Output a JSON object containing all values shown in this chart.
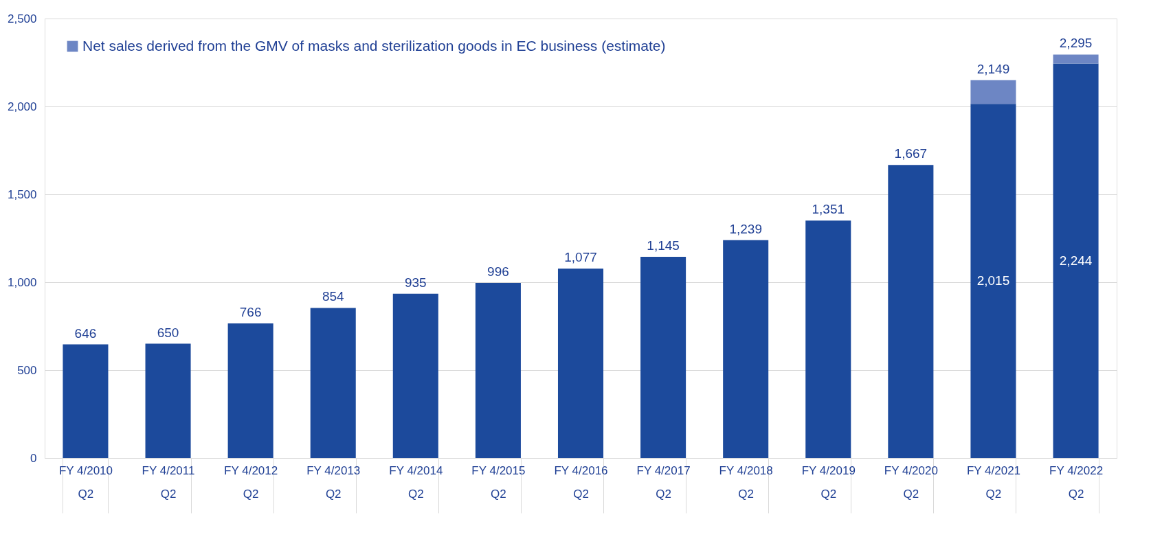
{
  "chart_data": {
    "type": "bar",
    "stacked": true,
    "categories": [
      "FY 4/2010\nQ2",
      "FY 4/2011\nQ2",
      "FY 4/2012\nQ2",
      "FY 4/2013\nQ2",
      "FY 4/2014\nQ2",
      "FY 4/2015\nQ2",
      "FY 4/2016\nQ2",
      "FY 4/2017\nQ2",
      "FY 4/2018\nQ2",
      "FY 4/2019\nQ2",
      "FY 4/2020\nQ2",
      "FY 4/2021\nQ2",
      "FY 4/2022\nQ2"
    ],
    "series": [
      {
        "color": "#1c4a9c",
        "values": [
          646,
          650,
          766,
          854,
          935,
          996,
          1077,
          1145,
          1239,
          1351,
          1667,
          2015,
          2244
        ],
        "value_labels": [
          null,
          null,
          null,
          null,
          null,
          null,
          null,
          null,
          null,
          null,
          null,
          "2,015",
          "2,244"
        ]
      },
      {
        "name": "Net sales derived from the GMV of masks and sterilization goods in EC business (estimate)",
        "color": "#6d86c4",
        "values": [
          null,
          null,
          null,
          null,
          null,
          null,
          null,
          null,
          null,
          null,
          null,
          134,
          51
        ]
      }
    ],
    "totals": [
      "646",
      "650",
      "766",
      "854",
      "935",
      "996",
      "1,077",
      "1,145",
      "1,239",
      "1,351",
      "1,667",
      "2,149",
      "2,295"
    ],
    "ylim": [
      0,
      2500
    ],
    "yticks": [
      0,
      500,
      {
        "value": 1000,
        "label": "1,000"
      },
      {
        "value": 1500,
        "label": "1,500"
      },
      {
        "value": 2000,
        "label": "2,000"
      },
      {
        "value": 2500,
        "label": "2,500"
      }
    ],
    "grid": "y",
    "legend": "top left"
  }
}
